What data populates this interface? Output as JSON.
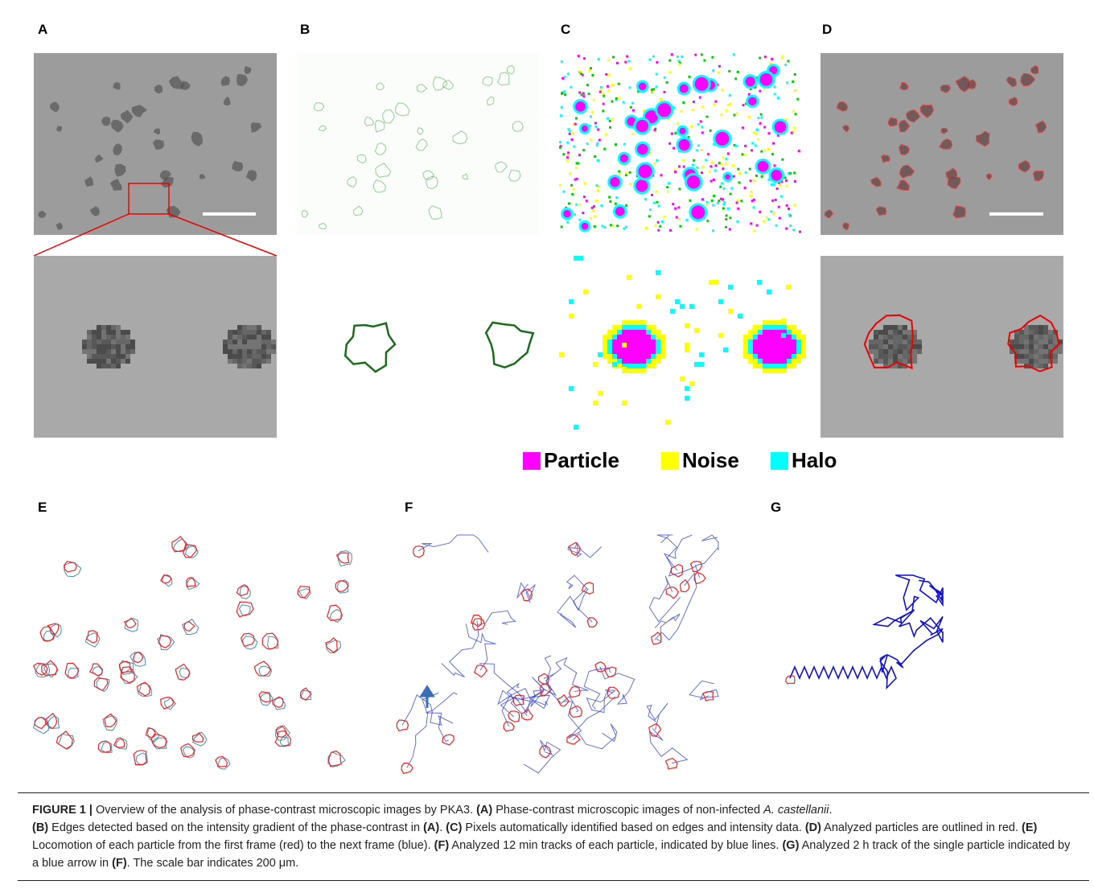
{
  "panels": {
    "a": "A",
    "b": "B",
    "c": "C",
    "d": "D",
    "e": "E",
    "f": "F",
    "g": "G"
  },
  "legend": [
    "Particle",
    "Noise",
    "Halo"
  ],
  "caption": [
    "FIGURE 1 |",
    " Overview of the analysis of phase-contrast microscopic images by PKA3. ",
    "(A)",
    " Phase-contrast microscopic images of non-infected ",
    "A. castellanii",
    ".",
    "(B)",
    " Edges detected based on the intensity gradient of the phase-contrast in ",
    "(A)",
    ". ",
    "(C)",
    " Pixels automatically identified based on edges and intensity data. ",
    "(D)",
    " Analyzed particles are outlined in red. ",
    "(E)",
    " Locomotion of each particle from the first frame (red) to the next frame (blue). ",
    "(F)",
    " Analyzed 12 min tracks of each particle, indicated by blue lines. ",
    "(G)",
    " Analyzed 2 h track of the single particle indicated by a blue arrow in ",
    "(F)",
    ". The scale bar indicates 200 μm."
  ]
}
